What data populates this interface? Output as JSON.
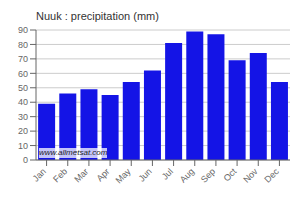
{
  "chart_data": {
    "type": "bar",
    "title": "Nuuk : precipitation (mm)",
    "categories": [
      "Jan",
      "Feb",
      "Mar",
      "Apr",
      "May",
      "Jun",
      "Jul",
      "Aug",
      "Sep",
      "Oct",
      "Nov",
      "Dec"
    ],
    "values": [
      39,
      46,
      49,
      45,
      54,
      62,
      81,
      89,
      87,
      69,
      74,
      54
    ],
    "color": "#1414e6",
    "ylim": [
      0,
      90
    ],
    "yticks": [
      0,
      10,
      20,
      30,
      40,
      50,
      60,
      70,
      80,
      90
    ],
    "grid": true,
    "annotations": [
      "www.allmetsat.com"
    ]
  }
}
